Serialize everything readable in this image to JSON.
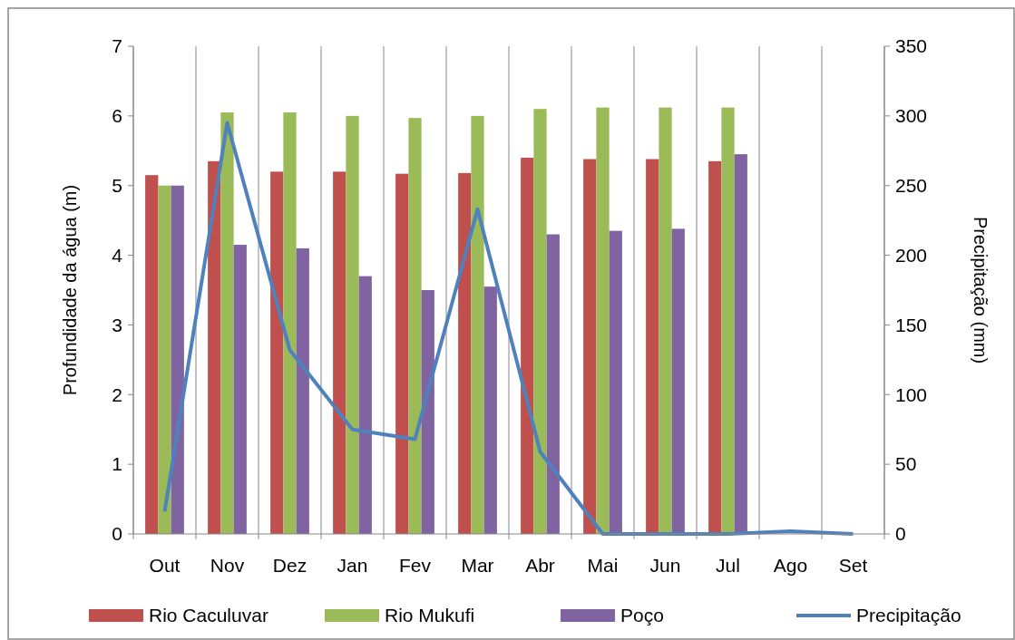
{
  "chart_data": {
    "type": "bar",
    "ylabel": "Profundidade da água (m)",
    "y2label": "Precipitação (mm)",
    "categories": [
      "Out",
      "Nov",
      "Dez",
      "Jan",
      "Fev",
      "Mar",
      "Abr",
      "Mai",
      "Jun",
      "Jul",
      "Ago",
      "Set"
    ],
    "series": [
      {
        "name": "Rio Caculuvar",
        "color": "#c0504d",
        "values": [
          5.15,
          5.35,
          5.2,
          5.2,
          5.17,
          5.18,
          5.4,
          5.38,
          5.38,
          5.35,
          null,
          null
        ]
      },
      {
        "name": "Rio Mukufi",
        "color": "#9bbb59",
        "values": [
          5.0,
          6.05,
          6.05,
          6.0,
          5.97,
          6.0,
          6.1,
          6.12,
          6.12,
          6.12,
          null,
          null
        ]
      },
      {
        "name": "Poço",
        "color": "#8064a2",
        "values": [
          5.0,
          4.15,
          4.1,
          3.7,
          3.5,
          3.55,
          4.3,
          4.35,
          4.38,
          5.45,
          null,
          null
        ]
      },
      {
        "name": "Precipitação",
        "type": "line",
        "axis": "y2",
        "color": "#4f81bd",
        "values": [
          16,
          295,
          132,
          75,
          68,
          233,
          59,
          0,
          0,
          0,
          2,
          0
        ]
      }
    ],
    "ylim": [
      0,
      7
    ],
    "yticks": [
      0,
      1,
      2,
      3,
      4,
      5,
      6,
      7
    ],
    "y2lim": [
      0,
      350
    ],
    "y2ticks": [
      0,
      50,
      100,
      150,
      200,
      250,
      300,
      350
    ],
    "grid": "x",
    "legend": "bottom",
    "marker": "none",
    "line_style": "solid"
  }
}
